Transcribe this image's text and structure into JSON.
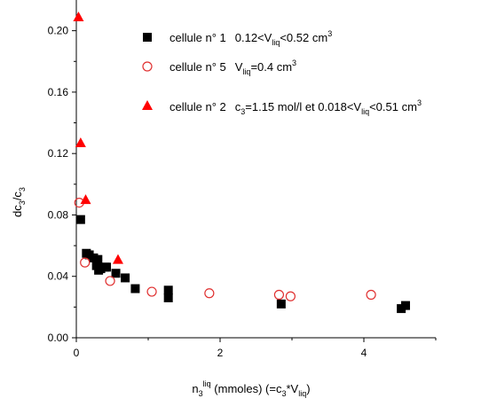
{
  "chart_data": {
    "type": "scatter",
    "xlim": [
      0,
      5
    ],
    "ylim": [
      0,
      0.22
    ],
    "xticks": [
      0,
      2,
      4
    ],
    "yticks": [
      0.0,
      0.04,
      0.08,
      0.12,
      0.16,
      0.2
    ],
    "ytick_labels": [
      "0.00",
      "0.04",
      "0.08",
      "0.12",
      "0.16",
      "0.20"
    ],
    "xlabel": {
      "pre": "n",
      "sub": "3",
      "sup": "liq",
      "mid": " (mmoles) (=c",
      "sub2": "3",
      "post": "*V",
      "sub3": "liq",
      "end": ")"
    },
    "ylabel": {
      "pre": "dc",
      "sub": "3",
      "mid": "/c",
      "sub2": "3"
    },
    "grid": false,
    "legend_position": "top-right",
    "series": [
      {
        "name": "cellule n° 1",
        "condition": {
          "a": "0.12<V",
          "sub": "liq",
          "b": "<0.52 cm",
          "sup": "3"
        },
        "marker": "square-filled",
        "color": "#000000",
        "points": [
          [
            0.06,
            0.077
          ],
          [
            0.14,
            0.055
          ],
          [
            0.18,
            0.054
          ],
          [
            0.24,
            0.052
          ],
          [
            0.28,
            0.047
          ],
          [
            0.3,
            0.051
          ],
          [
            0.31,
            0.044
          ],
          [
            0.34,
            0.045
          ],
          [
            0.4,
            0.046
          ],
          [
            0.42,
            0.046
          ],
          [
            0.55,
            0.042
          ],
          [
            0.68,
            0.039
          ],
          [
            0.82,
            0.032
          ],
          [
            1.28,
            0.026
          ],
          [
            1.28,
            0.031
          ],
          [
            2.85,
            0.022
          ],
          [
            4.52,
            0.019
          ],
          [
            4.58,
            0.021
          ]
        ]
      },
      {
        "name": "cellule n° 5",
        "condition": {
          "a": "V",
          "sub": "liq",
          "b": "=0.4 cm",
          "sup": "3"
        },
        "marker": "circle-open",
        "color": "#e03030",
        "points": [
          [
            0.04,
            0.088
          ],
          [
            0.12,
            0.049
          ],
          [
            0.47,
            0.037
          ],
          [
            1.05,
            0.03
          ],
          [
            1.85,
            0.029
          ],
          [
            2.82,
            0.028
          ],
          [
            2.98,
            0.027
          ],
          [
            4.1,
            0.028
          ]
        ]
      },
      {
        "name": "cellule n° 2",
        "condition": {
          "a": "c",
          "sub": "3",
          "b": "=1.15 mol/l et 0.018<V",
          "sub2": "liq",
          "c": "<0.51 cm",
          "sup": "3"
        },
        "marker": "triangle-filled",
        "color": "#ff0000",
        "points": [
          [
            0.03,
            0.209
          ],
          [
            0.06,
            0.127
          ],
          [
            0.13,
            0.09
          ],
          [
            0.58,
            0.051
          ]
        ]
      }
    ]
  }
}
